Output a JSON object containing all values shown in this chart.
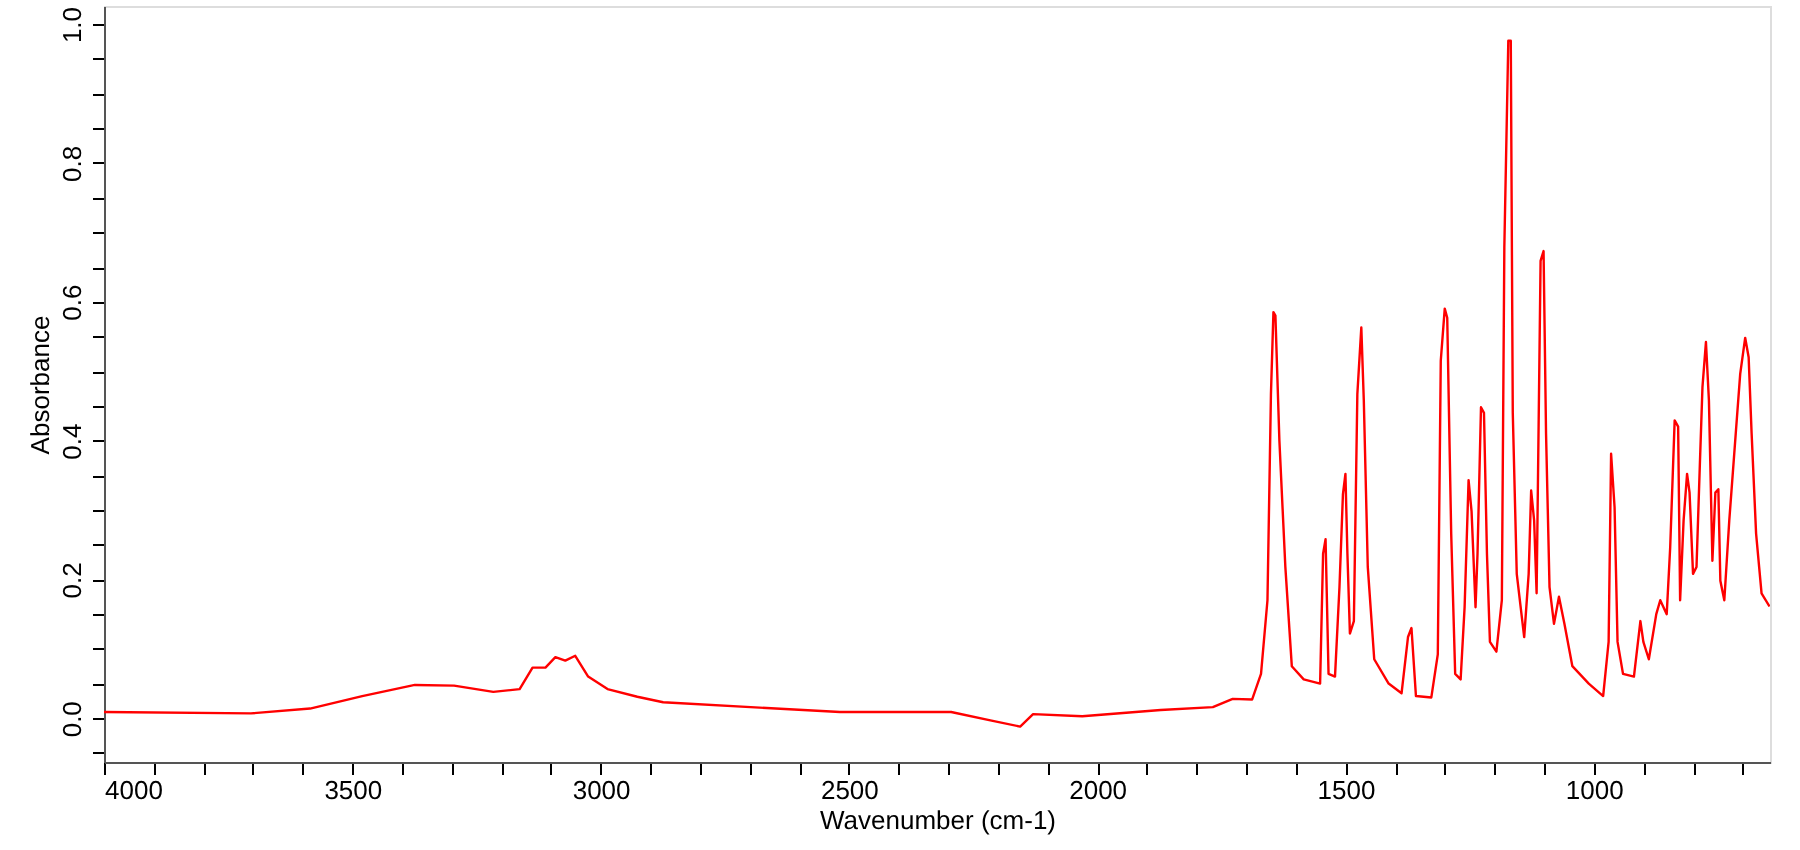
{
  "chart_data": {
    "type": "line",
    "xlabel": "Wavenumber (cm-1)",
    "ylabel": "Absorbance",
    "xlim": [
      4000,
      645
    ],
    "ylim": [
      -0.063,
      1.026
    ],
    "xticks": [
      4000,
      {
        "value": 3900,
        "label": null
      },
      {
        "value": 3800,
        "label": null
      },
      {
        "value": 3700,
        "label": null
      },
      {
        "value": 3600,
        "label": null
      },
      3500,
      {
        "value": 3400,
        "label": null
      },
      {
        "value": 3300,
        "label": null
      },
      {
        "value": 3200,
        "label": null
      },
      {
        "value": 3100,
        "label": null
      },
      3000,
      {
        "value": 2900,
        "label": null
      },
      {
        "value": 2800,
        "label": null
      },
      {
        "value": 2700,
        "label": null
      },
      {
        "value": 2600,
        "label": null
      },
      2500,
      {
        "value": 2400,
        "label": null
      },
      {
        "value": 2300,
        "label": null
      },
      {
        "value": 2200,
        "label": null
      },
      {
        "value": 2100,
        "label": null
      },
      2000,
      {
        "value": 1900,
        "label": null
      },
      {
        "value": 1800,
        "label": null
      },
      {
        "value": 1700,
        "label": null
      },
      {
        "value": 1600,
        "label": null
      },
      1500,
      {
        "value": 1400,
        "label": null
      },
      {
        "value": 1300,
        "label": null
      },
      {
        "value": 1200,
        "label": null
      },
      {
        "value": 1100,
        "label": null
      },
      1000,
      {
        "value": 900,
        "label": null
      },
      {
        "value": 800,
        "label": null
      },
      {
        "value": 700,
        "label": null
      }
    ],
    "yticks": [
      {
        "value": -0.05,
        "label": null
      },
      {
        "value": 0,
        "label": "0.0"
      },
      {
        "value": 0.05,
        "label": null
      },
      {
        "value": 0.1,
        "label": null
      },
      {
        "value": 0.15,
        "label": null
      },
      {
        "value": 0.2,
        "label": "0.2"
      },
      {
        "value": 0.25,
        "label": null
      },
      {
        "value": 0.3,
        "label": null
      },
      {
        "value": 0.35,
        "label": null
      },
      {
        "value": 0.4,
        "label": "0.4"
      },
      {
        "value": 0.45,
        "label": null
      },
      {
        "value": 0.5,
        "label": null
      },
      {
        "value": 0.55,
        "label": null
      },
      {
        "value": 0.6,
        "label": "0.6"
      },
      {
        "value": 0.65,
        "label": null
      },
      {
        "value": 0.7,
        "label": null
      },
      {
        "value": 0.75,
        "label": null
      },
      {
        "value": 0.8,
        "label": "0.8"
      },
      {
        "value": 0.85,
        "label": null
      },
      {
        "value": 0.9,
        "label": null
      },
      {
        "value": 0.95,
        "label": null
      },
      {
        "value": 1,
        "label": "1.0"
      }
    ],
    "grid": false,
    "marker": "none",
    "line_style": "solid",
    "series": [
      {
        "color": "#ff0000",
        "x": [
          4000,
          3704,
          3585,
          3480,
          3374,
          3295,
          3216,
          3163,
          3137,
          3111,
          3091,
          3071,
          3051,
          3025,
          2986,
          2926,
          2874,
          2518,
          2294,
          2215,
          2155,
          2129,
          2030,
          1872,
          1767,
          1727,
          1688,
          1670,
          1657,
          1650,
          1645,
          1641,
          1633,
          1621,
          1608,
          1584,
          1551,
          1545,
          1540,
          1534,
          1521,
          1512,
          1505,
          1500,
          1496,
          1491,
          1483,
          1476,
          1468,
          1463,
          1455,
          1442,
          1413,
          1387,
          1374,
          1367,
          1358,
          1327,
          1314,
          1308,
          1300,
          1295,
          1287,
          1279,
          1268,
          1260,
          1252,
          1246,
          1238,
          1234,
          1227,
          1221,
          1215,
          1209,
          1196,
          1185,
          1180,
          1172,
          1167,
          1163,
          1155,
          1140,
          1131,
          1126,
          1120,
          1115,
          1107,
          1101,
          1096,
          1089,
          1080,
          1070,
          1059,
          1043,
          1010,
          981,
          970,
          965,
          958,
          952,
          941,
          919,
          906,
          900,
          889,
          874,
          866,
          853,
          846,
          837,
          830,
          826,
          819,
          812,
          807,
          800,
          793,
          786,
          781,
          774,
          768,
          761,
          755,
          749,
          745,
          737,
          727,
          714,
          705,
          695,
          688,
          682,
          673,
          662,
          646
        ],
        "values": [
          0.009,
          0.007,
          0.014,
          0.032,
          0.048,
          0.047,
          0.038,
          0.042,
          0.073,
          0.073,
          0.088,
          0.083,
          0.09,
          0.06,
          0.042,
          0.031,
          0.023,
          0.009,
          0.009,
          -0.003,
          -0.012,
          0.006,
          0.003,
          0.012,
          0.016,
          0.028,
          0.027,
          0.064,
          0.17,
          0.467,
          0.585,
          0.58,
          0.4,
          0.218,
          0.075,
          0.056,
          0.05,
          0.237,
          0.258,
          0.064,
          0.06,
          0.189,
          0.323,
          0.352,
          0.237,
          0.122,
          0.14,
          0.467,
          0.563,
          0.458,
          0.218,
          0.085,
          0.05,
          0.036,
          0.117,
          0.13,
          0.032,
          0.03,
          0.092,
          0.515,
          0.59,
          0.577,
          0.266,
          0.064,
          0.056,
          0.16,
          0.343,
          0.298,
          0.16,
          0.237,
          0.448,
          0.44,
          0.237,
          0.11,
          0.096,
          0.17,
          0.678,
          0.976,
          0.976,
          0.44,
          0.208,
          0.117,
          0.208,
          0.328,
          0.285,
          0.18,
          0.659,
          0.673,
          0.41,
          0.189,
          0.136,
          0.175,
          0.136,
          0.075,
          0.05,
          0.032,
          0.11,
          0.381,
          0.304,
          0.11,
          0.064,
          0.06,
          0.14,
          0.11,
          0.085,
          0.15,
          0.17,
          0.15,
          0.246,
          0.429,
          0.42,
          0.17,
          0.285,
          0.352,
          0.325,
          0.208,
          0.218,
          0.371,
          0.477,
          0.542,
          0.458,
          0.227,
          0.325,
          0.33,
          0.198,
          0.17,
          0.285,
          0.41,
          0.496,
          0.548,
          0.52,
          0.41,
          0.266,
          0.18,
          0.161
        ]
      }
    ]
  }
}
